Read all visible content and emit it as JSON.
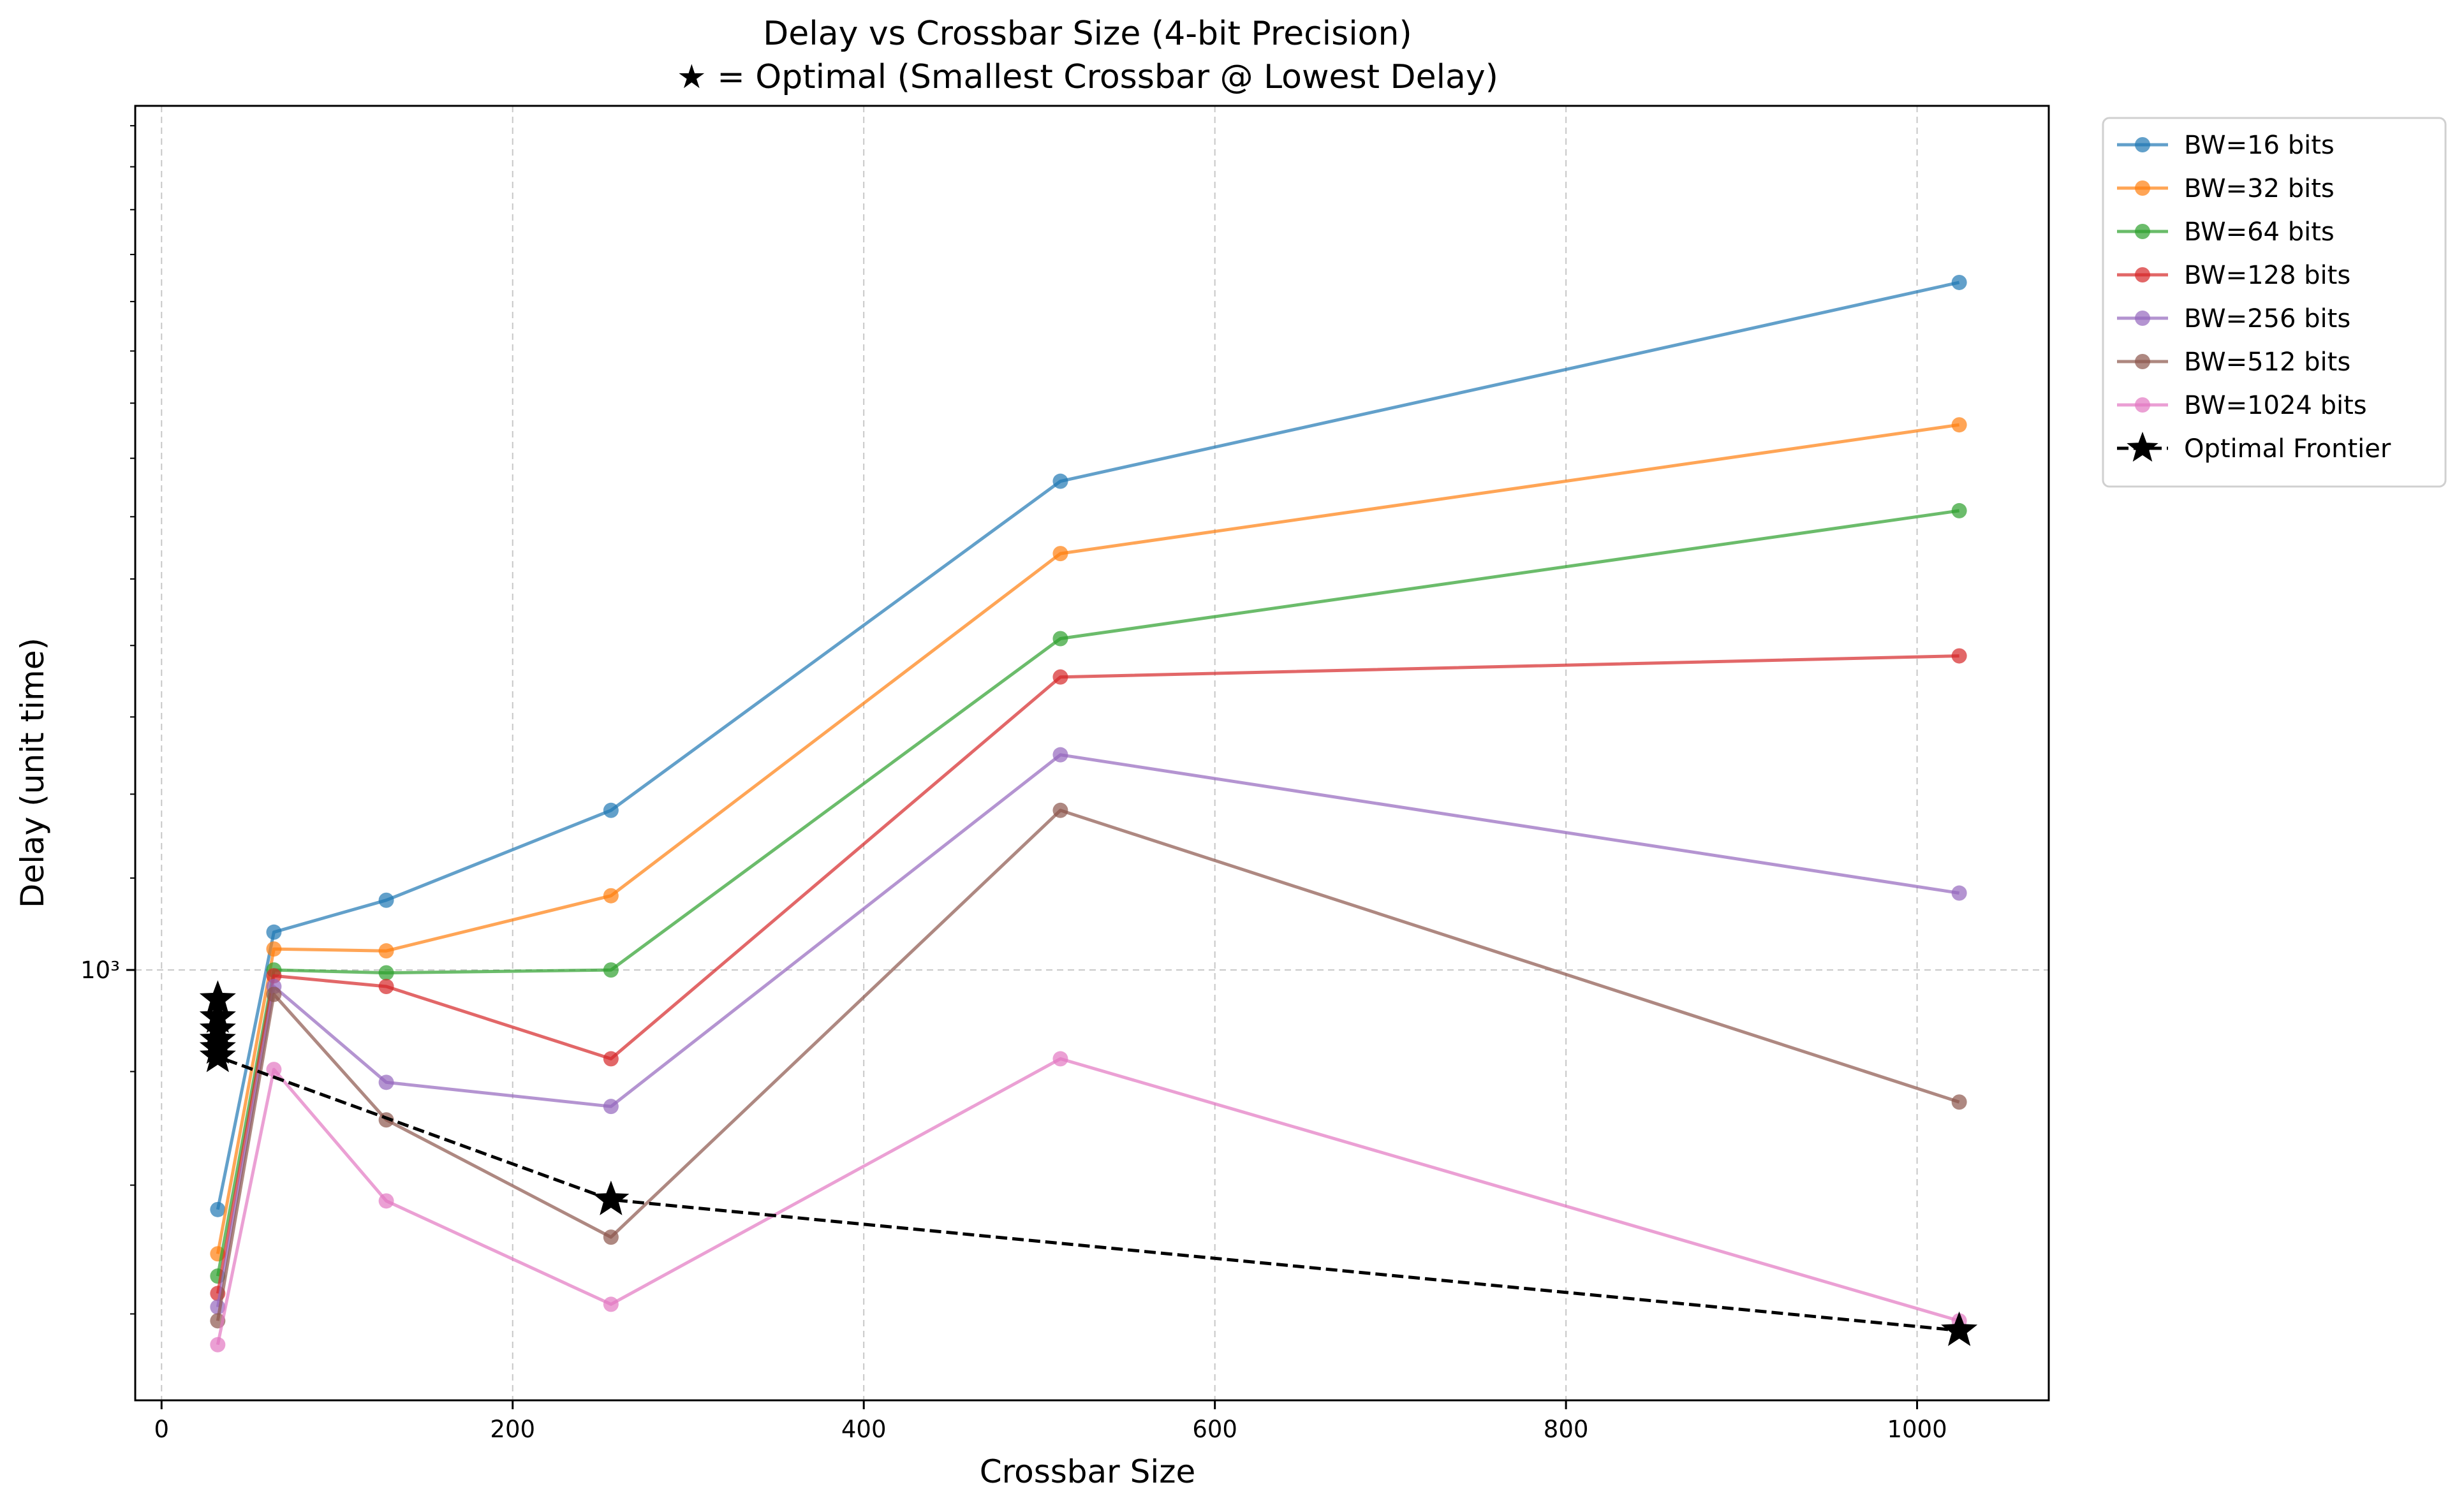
{
  "chart_data": {
    "type": "line",
    "title": "Delay vs Crossbar Size (4-bit Precision)",
    "subtitle": "★ = Optimal (Smallest Crossbar @ Lowest Delay)",
    "xlabel": "Crossbar Size",
    "ylabel": "Delay (unit time)",
    "xlim": [
      -15,
      1075
    ],
    "ylim": [
      640,
      2450
    ],
    "yscale": "log",
    "x_ticks": [
      0,
      200,
      400,
      600,
      800,
      1000
    ],
    "x_tick_labels": [
      "0",
      "200",
      "400",
      "600",
      "800",
      "1000"
    ],
    "y_ticks": [
      1000
    ],
    "y_tick_labels": [
      "10³"
    ],
    "grid": true,
    "legend_position": "outside-top-right",
    "x": [
      32,
      64,
      128,
      256,
      512,
      1024
    ],
    "series": [
      {
        "name": "BW=16 bits",
        "color": "#1f77b4",
        "values": [
          780,
          1040,
          1075,
          1180,
          1660,
          2040
        ]
      },
      {
        "name": "BW=32 bits",
        "color": "#ff7f0e",
        "values": [
          745,
          1022,
          1020,
          1080,
          1540,
          1760
        ]
      },
      {
        "name": "BW=64 bits",
        "color": "#2ca02c",
        "values": [
          728,
          1000,
          997,
          1000,
          1410,
          1610
        ]
      },
      {
        "name": "BW=128 bits",
        "color": "#d62728",
        "values": [
          715,
          994,
          983,
          912,
          1355,
          1385
        ]
      },
      {
        "name": "BW=256 bits",
        "color": "#9467bd",
        "values": [
          705,
          983,
          890,
          868,
          1250,
          1083
        ]
      },
      {
        "name": "BW=512 bits",
        "color": "#8c564b",
        "values": [
          695,
          975,
          856,
          758,
          1180,
          872
        ]
      },
      {
        "name": "BW=1024 bits",
        "color": "#e377c2",
        "values": [
          678,
          902,
          787,
          707,
          912,
          695
        ]
      }
    ],
    "optimal_frontier": {
      "name": "Optimal Frontier",
      "color": "#000000",
      "x": [
        32,
        32,
        32,
        32,
        32,
        32,
        256,
        1024
      ],
      "values": [
        970,
        952,
        940,
        930,
        922,
        914,
        788,
        688
      ]
    }
  }
}
